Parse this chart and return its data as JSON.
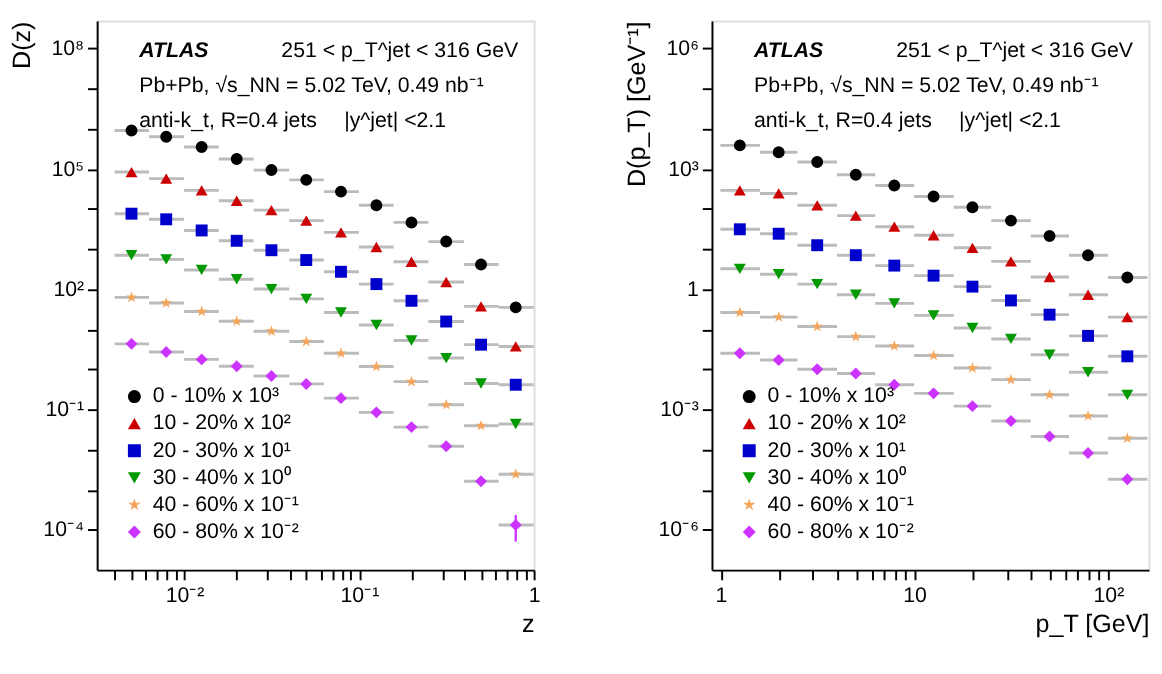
{
  "chart_data": [
    {
      "type": "scatter",
      "xlabel": "z",
      "ylabel": "D(z)",
      "log": "xy",
      "grid": false,
      "legend": "bottom left",
      "xlim": [
        0.00316,
        1
      ],
      "ylim": [
        1e-05,
        500000000
      ],
      "xticks": [
        {
          "value": 0.004,
          "label": null
        },
        {
          "value": 0.005,
          "label": null
        },
        {
          "value": 0.006,
          "label": null
        },
        {
          "value": 0.007,
          "label": null
        },
        {
          "value": 0.008,
          "label": null
        },
        {
          "value": 0.009,
          "label": null
        },
        {
          "value": 0.01,
          "label": "10⁻²"
        },
        {
          "value": 0.02,
          "label": null
        },
        {
          "value": 0.03,
          "label": null
        },
        {
          "value": 0.04,
          "label": null
        },
        {
          "value": 0.05,
          "label": null
        },
        {
          "value": 0.06,
          "label": null
        },
        {
          "value": 0.07,
          "label": null
        },
        {
          "value": 0.08,
          "label": null
        },
        {
          "value": 0.09,
          "label": null
        },
        {
          "value": 0.1,
          "label": "10⁻¹"
        },
        {
          "value": 0.2,
          "label": null
        },
        {
          "value": 0.3,
          "label": null
        },
        {
          "value": 0.4,
          "label": null
        },
        {
          "value": 0.5,
          "label": null
        },
        {
          "value": 0.6,
          "label": null
        },
        {
          "value": 0.7,
          "label": null
        },
        {
          "value": 0.8,
          "label": null
        },
        {
          "value": 0.9,
          "label": null
        },
        1
      ],
      "yticks": [
        {
          "value": 0.0001,
          "label": "10⁻⁴"
        },
        {
          "value": 0.001,
          "label": null
        },
        {
          "value": 0.01,
          "label": null
        },
        {
          "value": 0.1,
          "label": "10⁻¹"
        },
        {
          "value": 1,
          "label": null
        },
        {
          "value": 10,
          "label": null
        },
        {
          "value": 100,
          "label": "10²"
        },
        {
          "value": 1000,
          "label": null
        },
        {
          "value": 10000,
          "label": null
        },
        {
          "value": 100000,
          "label": "10⁵"
        },
        {
          "value": 1000000,
          "label": null
        },
        {
          "value": 10000000,
          "label": null
        },
        {
          "value": 100000000,
          "label": "10⁸"
        }
      ],
      "annotations": [
        "ATLAS",
        "251 < p_T^jet < 316 GeV",
        "Pb+Pb, √s_NN = 5.02 TeV, 0.49 nb⁻¹",
        "anti-k_t, R=0.4 jets",
        "|y^jet| <2.1"
      ],
      "x": [
        0.005,
        0.0079,
        0.0126,
        0.02,
        0.0316,
        0.05,
        0.079,
        0.126,
        0.2,
        0.316,
        0.5,
        0.79
      ],
      "series": [
        {
          "name": "0 - 10% x 10³",
          "color": "#000000",
          "marker": "circle",
          "values": [
            900000,
            630000,
            350000,
            176000,
            93000,
            53000,
            27000,
            12300,
            4600,
            1530,
            410,
            35
          ],
          "xerrors": [
            [
              0.004,
              0.0063
            ],
            [
              0.0063,
              0.01
            ],
            [
              0.01,
              0.0158
            ],
            [
              0.0158,
              0.025
            ],
            [
              0.025,
              0.04
            ],
            [
              0.04,
              0.063
            ],
            [
              0.063,
              0.1
            ],
            [
              0.1,
              0.158
            ],
            [
              0.158,
              0.25
            ],
            [
              0.25,
              0.4
            ],
            [
              0.4,
              0.63
            ],
            [
              0.63,
              1
            ]
          ]
        },
        {
          "name": "10 - 20% x 10²",
          "color": "#cc0000",
          "marker": "triangle",
          "values": [
            83000,
            57000,
            29000,
            16000,
            9300,
            5100,
            2600,
            1120,
            480,
            150,
            37,
            3.7
          ],
          "xerrors": [
            [
              0.004,
              0.0063
            ],
            [
              0.0063,
              0.01
            ],
            [
              0.01,
              0.0158
            ],
            [
              0.0158,
              0.025
            ],
            [
              0.025,
              0.04
            ],
            [
              0.04,
              0.063
            ],
            [
              0.063,
              0.1
            ],
            [
              0.1,
              0.158
            ],
            [
              0.158,
              0.25
            ],
            [
              0.25,
              0.4
            ],
            [
              0.4,
              0.63
            ],
            [
              0.63,
              1
            ]
          ]
        },
        {
          "name": "20 - 30% x 10¹",
          "color": "#0000cc",
          "marker": "square",
          "values": [
            7600,
            5500,
            2900,
            1600,
            930,
            530,
            270,
            133,
            51,
            15.5,
            4.1,
            0.41
          ],
          "xerrors": [
            [
              0.004,
              0.0063
            ],
            [
              0.0063,
              0.01
            ],
            [
              0.01,
              0.0158
            ],
            [
              0.0158,
              0.025
            ],
            [
              0.025,
              0.04
            ],
            [
              0.04,
              0.063
            ],
            [
              0.063,
              0.1
            ],
            [
              0.1,
              0.158
            ],
            [
              0.158,
              0.25
            ],
            [
              0.25,
              0.4
            ],
            [
              0.4,
              0.63
            ],
            [
              0.63,
              1
            ]
          ]
        },
        {
          "name": "30 - 40% x 10⁰",
          "color": "#009900",
          "marker": "triangle-down",
          "values": [
            700,
            550,
            300,
            176,
            100,
            57,
            26,
            12.7,
            5.2,
            1.9,
            0.44,
            0.043
          ],
          "xerrors": [
            [
              0.004,
              0.0063
            ],
            [
              0.0063,
              0.01
            ],
            [
              0.01,
              0.0158
            ],
            [
              0.0158,
              0.025
            ],
            [
              0.025,
              0.04
            ],
            [
              0.04,
              0.063
            ],
            [
              0.063,
              0.1
            ],
            [
              0.1,
              0.158
            ],
            [
              0.158,
              0.25
            ],
            [
              0.25,
              0.4
            ],
            [
              0.4,
              0.63
            ],
            [
              0.63,
              1
            ]
          ]
        },
        {
          "name": "40 - 60% x 10⁻¹",
          "color": "#f5a55a",
          "marker": "star",
          "values": [
            62,
            45,
            27.5,
            15.7,
            8.9,
            4.9,
            2.5,
            1.17,
            0.49,
            0.13,
            0.039,
            0.0024
          ],
          "xerrors": [
            [
              0.004,
              0.0063
            ],
            [
              0.0063,
              0.01
            ],
            [
              0.01,
              0.0158
            ],
            [
              0.0158,
              0.025
            ],
            [
              0.025,
              0.04
            ],
            [
              0.04,
              0.063
            ],
            [
              0.063,
              0.1
            ],
            [
              0.1,
              0.158
            ],
            [
              0.158,
              0.25
            ],
            [
              0.25,
              0.4
            ],
            [
              0.4,
              0.63
            ],
            [
              0.63,
              1
            ]
          ]
        },
        {
          "name": "60 - 80% x 10⁻²",
          "color": "#cc33ff",
          "marker": "diamond",
          "values": [
            4.3,
            2.7,
            1.76,
            1.19,
            0.68,
            0.43,
            0.19,
            0.084,
            0.036,
            0.012,
            0.0016,
            0.00013
          ],
          "xerrors": [
            [
              0.004,
              0.0063
            ],
            [
              0.0063,
              0.01
            ],
            [
              0.01,
              0.0158
            ],
            [
              0.0158,
              0.025
            ],
            [
              0.025,
              0.04
            ],
            [
              0.04,
              0.063
            ],
            [
              0.063,
              0.1
            ],
            [
              0.1,
              0.158
            ],
            [
              0.158,
              0.25
            ],
            [
              0.25,
              0.4
            ],
            [
              0.4,
              0.63
            ],
            [
              0.63,
              1
            ]
          ],
          "errors": [
            null,
            null,
            null,
            null,
            null,
            null,
            null,
            null,
            null,
            null,
            null,
            [
              5e-05,
              0.00023
            ]
          ]
        }
      ]
    },
    {
      "type": "scatter",
      "xlabel": "p_T [GeV]",
      "ylabel": "D(p_T) [GeV⁻¹]",
      "log": "xy",
      "grid": false,
      "legend": "bottom left",
      "xlim": [
        0.9,
        162
      ],
      "ylim": [
        1e-07,
        5000000
      ],
      "xticks": [
        1,
        {
          "value": 2,
          "label": null
        },
        {
          "value": 3,
          "label": null
        },
        {
          "value": 4,
          "label": null
        },
        {
          "value": 5,
          "label": null
        },
        {
          "value": 6,
          "label": null
        },
        {
          "value": 7,
          "label": null
        },
        {
          "value": 8,
          "label": null
        },
        {
          "value": 9,
          "label": null
        },
        10,
        {
          "value": 20,
          "label": null
        },
        {
          "value": 30,
          "label": null
        },
        {
          "value": 40,
          "label": null
        },
        {
          "value": 50,
          "label": null
        },
        {
          "value": 60,
          "label": null
        },
        {
          "value": 70,
          "label": null
        },
        {
          "value": 80,
          "label": null
        },
        {
          "value": 90,
          "label": null
        },
        {
          "value": 100,
          "label": "10²"
        }
      ],
      "yticks": [
        {
          "value": 1e-06,
          "label": "10⁻⁶"
        },
        {
          "value": 1e-05,
          "label": null
        },
        {
          "value": 0.0001,
          "label": null
        },
        {
          "value": 0.001,
          "label": "10⁻³"
        },
        {
          "value": 0.01,
          "label": null
        },
        {
          "value": 0.1,
          "label": null
        },
        1,
        {
          "value": 10,
          "label": null
        },
        {
          "value": 100,
          "label": null
        },
        {
          "value": 1000,
          "label": "10³"
        },
        {
          "value": 10000,
          "label": null
        },
        {
          "value": 100000,
          "label": null
        },
        {
          "value": 1000000,
          "label": "10⁶"
        }
      ],
      "annotations": [
        "ATLAS",
        "251 < p_T^jet < 316 GeV",
        "Pb+Pb, √s_NN = 5.02 TeV, 0.49 nb⁻¹",
        "anti-k_t, R=0.4 jets",
        "|y^jet| <2.1"
      ],
      "x": [
        1.26,
        2,
        3.16,
        5,
        7.9,
        12.6,
        20,
        31.6,
        50,
        79,
        126
      ],
      "series": [
        {
          "name": "0 - 10% x 10³",
          "color": "#000000",
          "marker": "circle",
          "values": [
            3850,
            2600,
            1480,
            710,
            385,
            204,
            110,
            51,
            21,
            7,
            1.95
          ],
          "xerrors": [
            [
              1,
              1.6
            ],
            [
              1.6,
              2.5
            ],
            [
              2.5,
              4
            ],
            [
              4,
              6.3
            ],
            [
              6.3,
              10
            ],
            [
              10,
              16
            ],
            [
              16,
              25
            ],
            [
              25,
              40
            ],
            [
              40,
              63
            ],
            [
              63,
              100
            ],
            [
              100,
              160
            ]
          ]
        },
        {
          "name": "10 - 20% x 10²",
          "color": "#cc0000",
          "marker": "triangle",
          "values": [
            290,
            243,
            123,
            68,
            36,
            22,
            10.7,
            4.9,
            2.0,
            0.72,
            0.2
          ],
          "xerrors": [
            [
              1,
              1.6
            ],
            [
              1.6,
              2.5
            ],
            [
              2.5,
              4
            ],
            [
              4,
              6.3
            ],
            [
              6.3,
              10
            ],
            [
              10,
              16
            ],
            [
              16,
              25
            ],
            [
              25,
              40
            ],
            [
              40,
              63
            ],
            [
              63,
              100
            ],
            [
              100,
              160
            ]
          ]
        },
        {
          "name": "20 - 30% x 10¹",
          "color": "#0000cc",
          "marker": "square",
          "values": [
            31,
            24,
            12.4,
            7,
            3.85,
            2.16,
            1.15,
            0.52,
            0.23,
            0.068,
            0.021
          ],
          "xerrors": [
            [
              1,
              1.6
            ],
            [
              1.6,
              2.5
            ],
            [
              2.5,
              4
            ],
            [
              4,
              6.3
            ],
            [
              6.3,
              10
            ],
            [
              10,
              16
            ],
            [
              16,
              25
            ],
            [
              25,
              40
            ],
            [
              40,
              63
            ],
            [
              63,
              100
            ],
            [
              100,
              160
            ]
          ]
        },
        {
          "name": "30 - 40% x 10⁰",
          "color": "#009900",
          "marker": "triangle-down",
          "values": [
            3.2,
            2.35,
            1.33,
            0.72,
            0.44,
            0.22,
            0.107,
            0.057,
            0.023,
            0.0084,
            0.0023
          ],
          "xerrors": [
            [
              1,
              1.6
            ],
            [
              1.6,
              2.5
            ],
            [
              2.5,
              4
            ],
            [
              4,
              6.3
            ],
            [
              6.3,
              10
            ],
            [
              10,
              16
            ],
            [
              16,
              25
            ],
            [
              25,
              40
            ],
            [
              40,
              63
            ],
            [
              63,
              100
            ],
            [
              100,
              160
            ]
          ]
        },
        {
          "name": "40 - 60% x 10⁻¹",
          "color": "#f5a55a",
          "marker": "star",
          "values": [
            0.26,
            0.2,
            0.116,
            0.065,
            0.038,
            0.022,
            0.0107,
            0.0055,
            0.0023,
            0.00068,
            0.00019
          ],
          "xerrors": [
            [
              1,
              1.6
            ],
            [
              1.6,
              2.5
            ],
            [
              2.5,
              4
            ],
            [
              4,
              6.3
            ],
            [
              6.3,
              10
            ],
            [
              10,
              16
            ],
            [
              16,
              25
            ],
            [
              25,
              40
            ],
            [
              40,
              63
            ],
            [
              63,
              100
            ],
            [
              100,
              160
            ]
          ]
        },
        {
          "name": "60 - 80% x 10⁻²",
          "color": "#cc33ff",
          "marker": "diamond",
          "values": [
            0.025,
            0.017,
            0.01,
            0.0078,
            0.0041,
            0.0025,
            0.0012,
            0.00051,
            0.00021,
            8.1e-05,
            1.8e-05
          ],
          "xerrors": [
            [
              1,
              1.6
            ],
            [
              1.6,
              2.5
            ],
            [
              2.5,
              4
            ],
            [
              4,
              6.3
            ],
            [
              6.3,
              10
            ],
            [
              10,
              16
            ],
            [
              16,
              25
            ],
            [
              25,
              40
            ],
            [
              40,
              63
            ],
            [
              63,
              100
            ],
            [
              100,
              160
            ]
          ]
        }
      ]
    }
  ]
}
